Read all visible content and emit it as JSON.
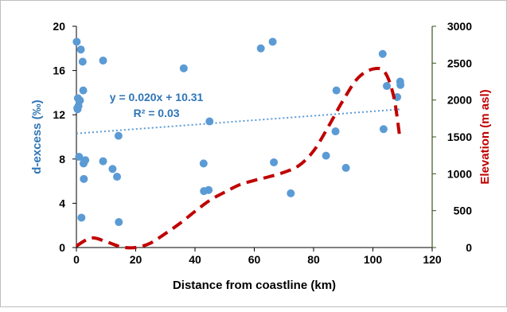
{
  "chart_data": {
    "type": "scatter",
    "xlabel": "Distance from coastline (km)",
    "ylabel_left": "d-excess (‰)",
    "ylabel_right": "Elevation (m asl)",
    "xlim": [
      0,
      120
    ],
    "xticks": [
      0,
      20,
      40,
      60,
      80,
      100,
      120
    ],
    "ylim_left": [
      0,
      20
    ],
    "yticks_left": [
      0,
      4,
      8,
      12,
      16,
      20
    ],
    "ylim_right": [
      0,
      3000
    ],
    "yticks_right": [
      0,
      500,
      1000,
      1500,
      2000,
      2500,
      3000
    ],
    "colors": {
      "points": "#5b9bd5",
      "trendline": "#5b9bd5",
      "elevation": "#c00000",
      "left_axis_text": "#2e75b6",
      "right_axis_text": "#c00000",
      "right_axis_line": "#385723"
    },
    "series": [
      {
        "axis": "left",
        "kind": "scatter",
        "points": [
          [
            0.1,
            18.6
          ],
          [
            0.3,
            12.6
          ],
          [
            0.4,
            12.5
          ],
          [
            0.5,
            13.5
          ],
          [
            0.7,
            12.8
          ],
          [
            0.9,
            8.2
          ],
          [
            1.2,
            13.3
          ],
          [
            1.5,
            17.9
          ],
          [
            1.7,
            2.7
          ],
          [
            2.1,
            16.8
          ],
          [
            2.3,
            14.2
          ],
          [
            2.4,
            7.6
          ],
          [
            2.5,
            6.2
          ],
          [
            2.7,
            7.8
          ],
          [
            3.0,
            7.9
          ],
          [
            9.0,
            16.9
          ],
          [
            9.0,
            7.8
          ],
          [
            12.2,
            7.1
          ],
          [
            13.7,
            6.4
          ],
          [
            14.2,
            10.1
          ],
          [
            14.3,
            2.3
          ],
          [
            36.2,
            16.2
          ],
          [
            42.9,
            7.6
          ],
          [
            43.0,
            5.1
          ],
          [
            44.6,
            5.2
          ],
          [
            44.9,
            11.4
          ],
          [
            62.2,
            18.0
          ],
          [
            66.2,
            18.6
          ],
          [
            66.6,
            7.7
          ],
          [
            72.3,
            4.9
          ],
          [
            84.2,
            8.3
          ],
          [
            87.4,
            10.5
          ],
          [
            87.7,
            14.2
          ],
          [
            90.9,
            7.2
          ],
          [
            103.3,
            17.5
          ],
          [
            103.6,
            10.7
          ],
          [
            104.7,
            14.6
          ],
          [
            108.2,
            13.6
          ],
          [
            109.2,
            15.0
          ],
          [
            109.3,
            14.7
          ]
        ]
      },
      {
        "axis": "left",
        "kind": "trendline",
        "equation": "y = 0.020x + 10.31",
        "r_squared": "R² = 0.03",
        "slope": 0.02,
        "intercept": 10.31,
        "x_range": [
          0,
          109
        ]
      },
      {
        "axis": "right",
        "kind": "line",
        "style": "dashed-smooth",
        "points": [
          [
            0,
            20
          ],
          [
            5,
            130
          ],
          [
            10,
            80
          ],
          [
            15,
            10
          ],
          [
            20,
            0
          ],
          [
            25,
            60
          ],
          [
            30,
            190
          ],
          [
            35,
            330
          ],
          [
            40,
            490
          ],
          [
            45,
            640
          ],
          [
            50,
            750
          ],
          [
            55,
            850
          ],
          [
            60,
            910
          ],
          [
            65,
            960
          ],
          [
            70,
            1020
          ],
          [
            75,
            1110
          ],
          [
            80,
            1310
          ],
          [
            85,
            1640
          ],
          [
            90,
            2000
          ],
          [
            95,
            2300
          ],
          [
            100,
            2420
          ],
          [
            104,
            2380
          ],
          [
            107,
            2050
          ],
          [
            109,
            1520
          ]
        ]
      }
    ]
  }
}
